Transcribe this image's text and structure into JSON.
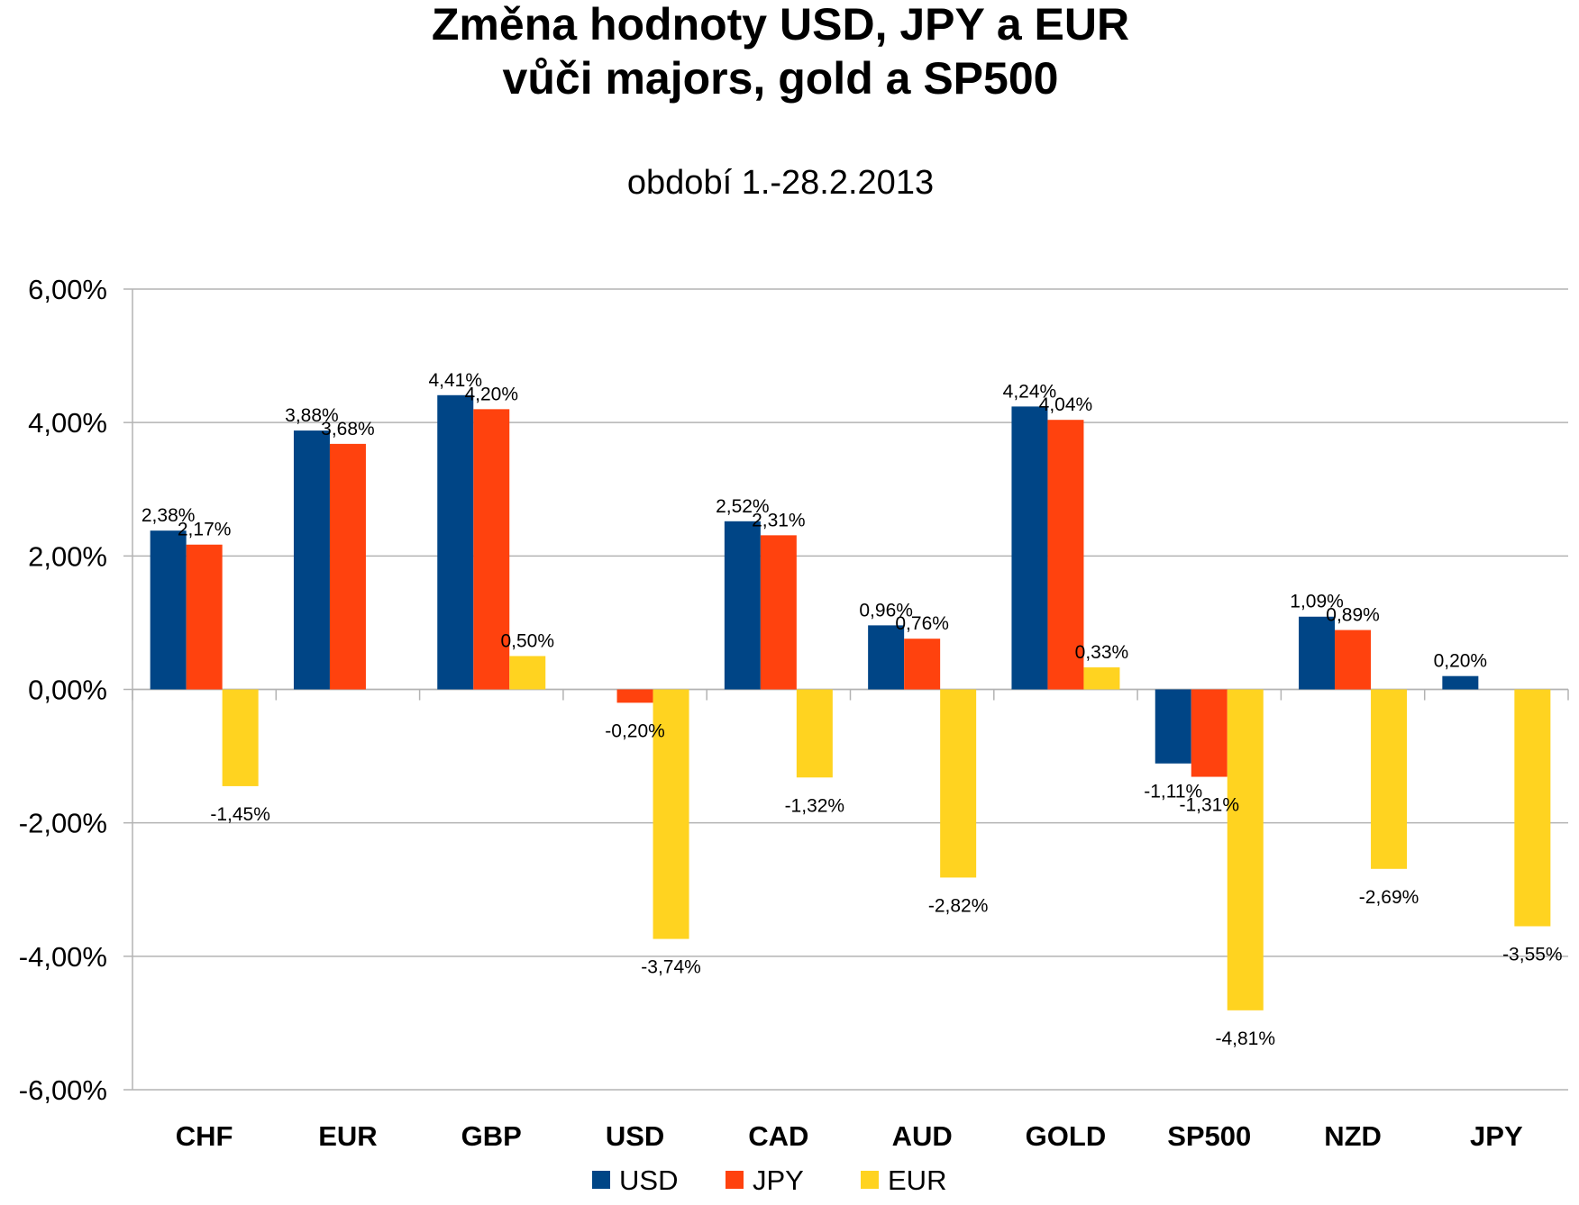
{
  "chart_data": {
    "type": "bar",
    "title_line1": "Změna hodnoty USD, JPY a EUR",
    "title_line2": "vůči majors, gold a SP500",
    "subtitle": "období 1.-28.2.2013",
    "xlabel": "",
    "ylabel": "",
    "ylim": [
      -6,
      6
    ],
    "ytick_step": 2,
    "grid": true,
    "legend_position": "bottom",
    "categories": [
      "CHF",
      "EUR",
      "GBP",
      "USD",
      "CAD",
      "AUD",
      "GOLD",
      "SP500",
      "NZD",
      "JPY"
    ],
    "series": [
      {
        "name": "USD",
        "color": "#004586",
        "values": [
          2.38,
          3.88,
          4.41,
          null,
          2.52,
          0.96,
          4.24,
          -1.11,
          1.09,
          0.2
        ],
        "labels": [
          "2,38%",
          "3,88%",
          "4,41%",
          "",
          "2,52%",
          "0,96%",
          "4,24%",
          "-1,11%",
          "1,09%",
          "0,20%"
        ]
      },
      {
        "name": "JPY",
        "color": "#ff420e",
        "values": [
          2.17,
          3.68,
          4.2,
          -0.2,
          2.31,
          0.76,
          4.04,
          -1.31,
          0.89,
          null
        ],
        "labels": [
          "2,17%",
          "3,68%",
          "4,20%",
          "-0,20%",
          "2,31%",
          "0,76%",
          "4,04%",
          "-1,31%",
          "0,89%",
          ""
        ]
      },
      {
        "name": "EUR",
        "color": "#ffd320",
        "values": [
          -1.45,
          null,
          0.5,
          -3.74,
          -1.32,
          -2.82,
          0.33,
          -4.81,
          -2.69,
          -3.55
        ],
        "labels": [
          "-1,45%",
          "",
          "0,50%",
          "-3,74%",
          "-1,32%",
          "-2,82%",
          "0,33%",
          "-4,81%",
          "-2,69%",
          "-3,55%"
        ]
      }
    ],
    "ytick_labels": [
      "-6,00%",
      "-4,00%",
      "-2,00%",
      "0,00%",
      "2,00%",
      "4,00%",
      "6,00%"
    ]
  }
}
